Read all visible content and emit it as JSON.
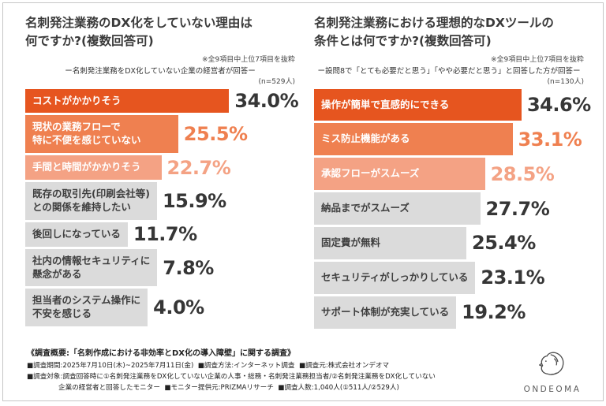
{
  "colors": {
    "rank1": "#e6551f",
    "rank2": "#ef8050",
    "rank3": "#f4a284",
    "other": "#dbdbdb",
    "bar_text_light": "#ffffff",
    "bar_text_dark": "#3f3f3f",
    "value_dark": "#363636"
  },
  "chart_data": [
    {
      "type": "bar",
      "orientation": "horizontal",
      "title": "名刺発注業務のDX化をしていない理由は\n何ですか?(複数回答可)",
      "note": "※全9項目中上位7項目を抜粋",
      "subtitle": "ー名刺発注業務をDX化していない企業の経営者が回答ー",
      "sample": "(n=529人)",
      "categories": [
        "コストがかかりそう",
        "現状の業務フローで\n特に不便を感じていない",
        "手間と時間がかかりそう",
        "既存の取引先(印刷会社等)\nとの関係を維持したい",
        "後回しになっている",
        "社内の情報セキュリティに\n懸念がある",
        "担当者のシステム操作に\n不安を感じる"
      ],
      "values": [
        34.0,
        25.5,
        22.7,
        15.9,
        11.7,
        7.8,
        4.0
      ],
      "value_labels": [
        "34.0%",
        "25.5%",
        "22.7%",
        "15.9%",
        "11.7%",
        "7.8%",
        "4.0%"
      ],
      "xlim": [
        0,
        45
      ],
      "grid": false,
      "legend": "none"
    },
    {
      "type": "bar",
      "orientation": "horizontal",
      "title": "名刺発注業務における理想的なDXツールの\n条件とは何ですか?(複数回答可)",
      "note": "※全9項目中上位7項目を抜粋",
      "subtitle": "ー設問8で「とても必要だと思う」「やや必要だと思う」と回答した方が回答ー",
      "sample": "(n=130人)",
      "categories": [
        "操作が簡単で直感的にできる",
        "ミス防止機能がある",
        "承認フローがスムーズ",
        "納品までがスムーズ",
        "固定費が無料",
        "セキュリティがしっかりしている",
        "サポート体制が充実している"
      ],
      "values": [
        34.6,
        33.1,
        28.5,
        27.7,
        25.4,
        23.1,
        19.2
      ],
      "value_labels": [
        "34.6%",
        "33.1%",
        "28.5%",
        "27.7%",
        "25.4%",
        "23.1%",
        "19.2%"
      ],
      "xlim": [
        0,
        45
      ],
      "grid": false,
      "legend": "none"
    }
  ],
  "footer": {
    "heading": "《調査概要:「名刺作成における非効率とDX化の導入障壁」に関する調査》",
    "lines": [
      "■調査期間:2025年7月10日(木)~2025年7月11日(金)  ■調査方法:インターネット調査  ■調査元:株式会社オンデオマ",
      "■調査対象:調査回答時に①名刺発注業務をDX化していない企業の人事・総務・名刺発注業務担当者/②名刺発注業務をDX化していない",
      "企業の経営者と回答したモニター  ■モニター提供元:PRIZMAリサーチ  ■調査人数:1,040人(①511人/②529人)"
    ],
    "logo_text": "ONDEOMA"
  }
}
